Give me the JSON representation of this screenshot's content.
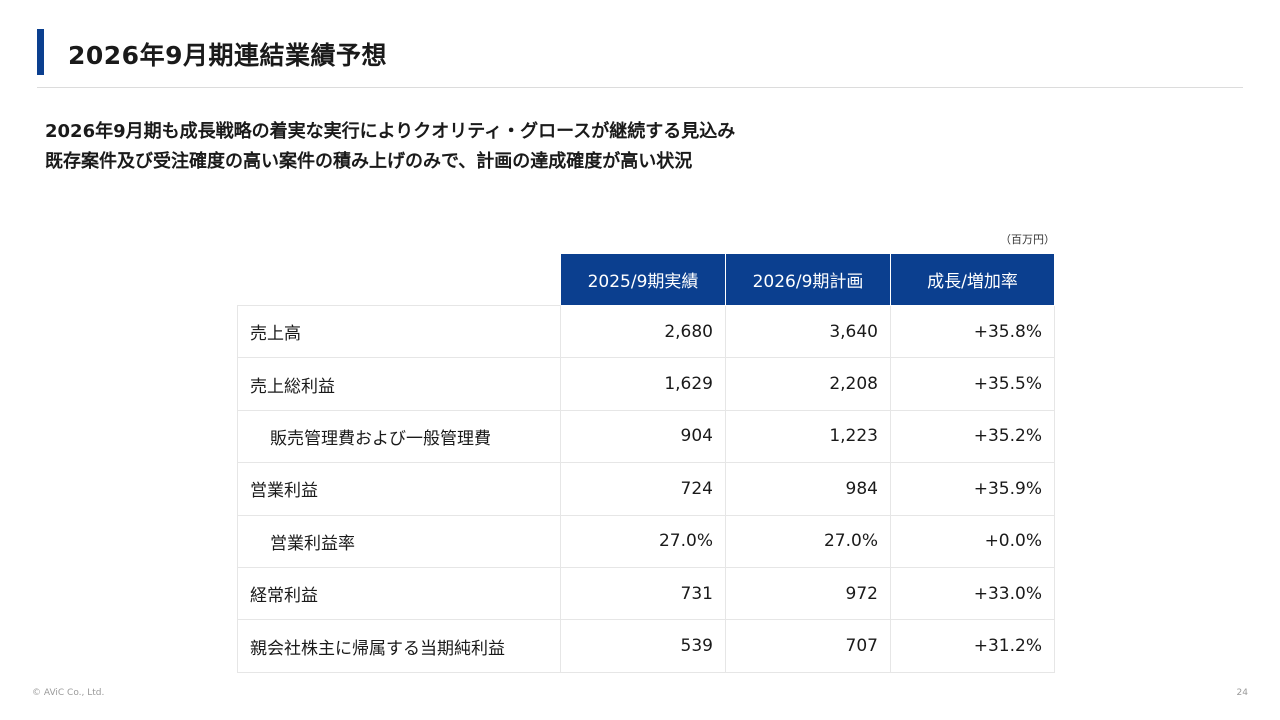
{
  "title": "2026年9月期連結業績予想",
  "lead": [
    "2026年9月期も成長戦略の着実な実行によりクオリティ・グロースが継続する見込み",
    "既存案件及び受注確度の高い案件の積み上げのみで、計画の達成確度が高い状況"
  ],
  "unit": "（百万円）",
  "table": {
    "headers": [
      "2025/9期実績",
      "2026/9期計画",
      "成長/増加率"
    ],
    "rows": [
      {
        "label": "売上高",
        "actual": "2,680",
        "plan": "3,640",
        "rate": "+35.8%"
      },
      {
        "label": "売上総利益",
        "actual": "1,629",
        "plan": "2,208",
        "rate": "+35.5%"
      },
      {
        "label": "販売管理費および一般管理費",
        "actual": "904",
        "plan": "1,223",
        "rate": "+35.2%"
      },
      {
        "label": "営業利益",
        "actual": "724",
        "plan": "984",
        "rate": "+35.9%"
      },
      {
        "label": "営業利益率",
        "actual": "27.0%",
        "plan": "27.0%",
        "rate": "+0.0%"
      },
      {
        "label": "経常利益",
        "actual": "731",
        "plan": "972",
        "rate": "+33.0%"
      },
      {
        "label": "親会社株主に帰属する当期純利益",
        "actual": "539",
        "plan": "707",
        "rate": "+31.2%"
      }
    ]
  },
  "footer": {
    "copyright": "© AViC Co., Ltd.",
    "page": "24"
  }
}
